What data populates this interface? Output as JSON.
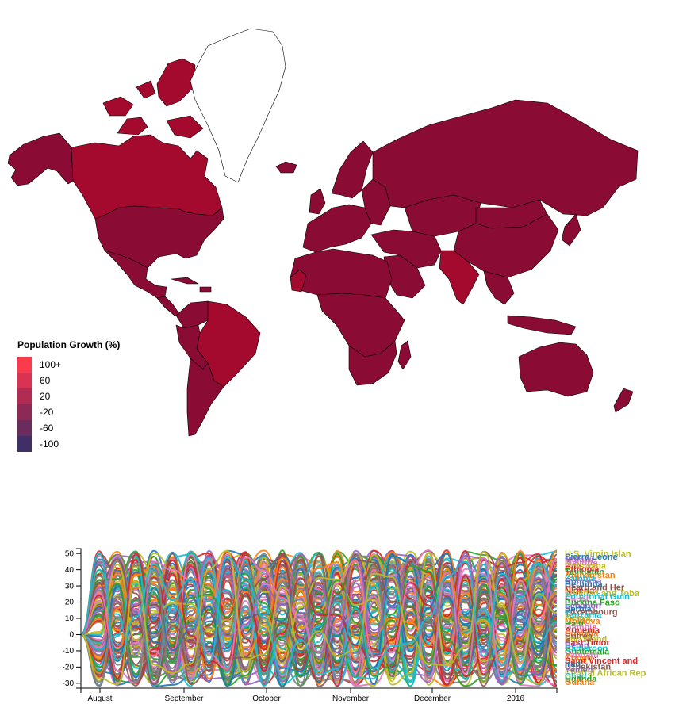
{
  "legend": {
    "title": "Population Growth (%)",
    "items": [
      {
        "label": "100+",
        "color": "#fb3a4c"
      },
      {
        "label": "60",
        "color": "#d83350"
      },
      {
        "label": "20",
        "color": "#b02c52"
      },
      {
        "label": "-20",
        "color": "#8c2a55"
      },
      {
        "label": "-60",
        "color": "#6a2c5c"
      },
      {
        "label": "-100",
        "color": "#3f2f66"
      }
    ]
  },
  "map": {
    "land_color": "#8a0b34",
    "highlight_color": "#a4092e",
    "greenland_color": "#ffffff"
  },
  "chart_data": {
    "type": "line",
    "x_ticks": [
      "August",
      "September",
      "October",
      "November",
      "December",
      "2016"
    ],
    "y_ticks": [
      50,
      40,
      30,
      20,
      10,
      0,
      -10,
      -20,
      -30
    ],
    "ylim": [
      -33,
      53
    ],
    "series_count": 120,
    "series_labels": [
      {
        "name": "U.S. Virgin Islan",
        "color": "#bcbd22"
      },
      {
        "name": "Sierra Leone",
        "color": "#1f77b4"
      },
      {
        "name": "Malawi",
        "color": "#9467bd"
      },
      {
        "name": "Mayotte",
        "color": "#e377c2"
      },
      {
        "name": "Botswana",
        "color": "#bcbd22"
      },
      {
        "name": "Ethiopia",
        "color": "#d62728"
      },
      {
        "name": "Tajikistan",
        "color": "#2ca02c"
      },
      {
        "name": "Afghanistan",
        "color": "#ff7f0e"
      },
      {
        "name": "Zambia",
        "color": "#17becf"
      },
      {
        "name": "Romania",
        "color": "#9467bd"
      },
      {
        "name": "Bermuda",
        "color": "#1f77b4"
      },
      {
        "name": "Heard and Her",
        "color": "#8c564b"
      },
      {
        "name": "Nigeria",
        "color": "#d62728"
      },
      {
        "name": "Trinidad and Toba",
        "color": "#bcbd22"
      },
      {
        "name": "Equatorial Guin",
        "color": "#17becf"
      },
      {
        "name": "Nepal",
        "color": "#e377c2"
      },
      {
        "name": "Burkina Faso",
        "color": "#2ca02c"
      },
      {
        "name": "Lebanon",
        "color": "#9467bd"
      },
      {
        "name": "Serbia",
        "color": "#1f77b4"
      },
      {
        "name": "Luxembourg",
        "color": "#8c564b"
      },
      {
        "name": "Tanzania",
        "color": "#17becf"
      },
      {
        "name": "Kenya",
        "color": "#bcbd22"
      },
      {
        "name": "Moldova",
        "color": "#ff7f0e"
      },
      {
        "name": "Haiti",
        "color": "#2ca02c"
      },
      {
        "name": "Gambia",
        "color": "#e377c2"
      },
      {
        "name": "Armenia",
        "color": "#d62728"
      },
      {
        "name": "Somalia",
        "color": "#ff7f0e"
      },
      {
        "name": "Eritrea",
        "color": "#8c564b"
      },
      {
        "name": "Swaziland",
        "color": "#bcbd22"
      },
      {
        "name": "East Timor",
        "color": "#d62728"
      },
      {
        "name": "Benin",
        "color": "#9467bd"
      },
      {
        "name": "Cameroon",
        "color": "#17becf"
      },
      {
        "name": "Guatemala",
        "color": "#2ca02c"
      },
      {
        "name": "Vanuatu",
        "color": "#e377c2"
      },
      {
        "name": "Congo",
        "color": "#ff7f0e"
      },
      {
        "name": "Saint Vincent and",
        "color": "#d62728"
      },
      {
        "name": "Iraq",
        "color": "#1f77b4"
      },
      {
        "name": "Uzbekistan",
        "color": "#8c564b"
      },
      {
        "name": "Yemen",
        "color": "#9467bd"
      },
      {
        "name": "Central African Rep",
        "color": "#bcbd22"
      },
      {
        "name": "Chad",
        "color": "#17becf"
      },
      {
        "name": "Uganda",
        "color": "#2ca02c"
      },
      {
        "name": "Guiana",
        "color": "#ff7f0e"
      }
    ]
  }
}
